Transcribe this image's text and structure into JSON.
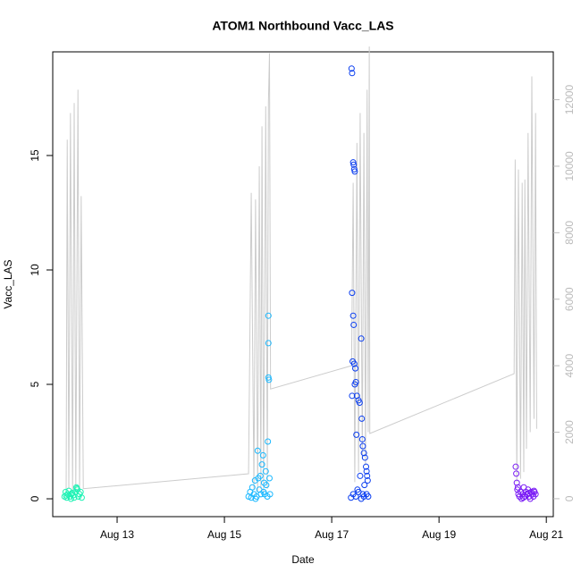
{
  "chart_data": {
    "type": "scatter",
    "title": "ATOM1 Northbound Vacc_LAS",
    "x_label": "Date",
    "y_label": "Vacc_LAS",
    "xlim": [
      11.8,
      21.13
    ],
    "xticks": [
      {
        "value": 13,
        "label": "Aug 13"
      },
      {
        "value": 15,
        "label": "Aug 15"
      },
      {
        "value": 17,
        "label": "Aug 17"
      },
      {
        "value": 19,
        "label": "Aug 19"
      },
      {
        "value": 21,
        "label": "Aug 21"
      }
    ],
    "ylim": [
      -0.78,
      19.53
    ],
    "yticks": [
      0,
      5,
      10,
      15
    ],
    "y2lim": [
      -540,
      13440
    ],
    "y2ticks": [
      0,
      2000,
      4000,
      6000,
      8000,
      10000,
      12000
    ],
    "series": [
      {
        "style": "line",
        "axis": "y2",
        "color": "#cccccc",
        "x": [
          12.05,
          12.07,
          12.1,
          12.13,
          12.17,
          12.2,
          12.23,
          12.27,
          12.3,
          12.33,
          12.37,
          15.45,
          15.5,
          15.55,
          15.58,
          15.62,
          15.65,
          15.68,
          15.7,
          15.73,
          15.77,
          15.8,
          15.82,
          15.84,
          15.86,
          17.37,
          17.4,
          17.43,
          17.47,
          17.5,
          17.53,
          17.57,
          17.6,
          17.63,
          17.66,
          17.68,
          17.7,
          17.71,
          20.4,
          20.42,
          20.45,
          20.48,
          20.52,
          20.55,
          20.58,
          20.6,
          20.63,
          20.66,
          20.7,
          20.73,
          20.77,
          20.8,
          20.82
        ],
        "values": [
          200,
          10800,
          300,
          11600,
          200,
          11900,
          300,
          12300,
          200,
          9100,
          300,
          750,
          9200,
          300,
          9000,
          200,
          10000,
          300,
          11200,
          200,
          11800,
          300,
          11900,
          13400,
          3300,
          4000,
          9500,
          500,
          10700,
          800,
          11600,
          1200,
          11000,
          1000,
          12300,
          2000,
          13600,
          1960,
          3760,
          10200,
          500,
          9900,
          600,
          9500,
          800,
          9600,
          1500,
          11000,
          2000,
          12700,
          2400,
          11600,
          2100
        ]
      },
      {
        "style": "points",
        "color": "#1ef2b4",
        "x": [
          12.02,
          12.04,
          12.06,
          12.08,
          12.1,
          12.12,
          12.14,
          12.16,
          12.18,
          12.2,
          12.22,
          12.24,
          12.26,
          12.28,
          12.3,
          12.32,
          12.34,
          12.05,
          12.15,
          12.25
        ],
        "values": [
          0.1,
          0.3,
          0.05,
          0.2,
          0.35,
          0.1,
          0.0,
          0.25,
          0.15,
          0.05,
          0.3,
          0.5,
          0.4,
          0.1,
          0.2,
          0.3,
          0.05,
          0.15,
          0.2,
          0.45
        ]
      },
      {
        "style": "points",
        "color": "#1ab8ff",
        "x": [
          15.45,
          15.48,
          15.5,
          15.52,
          15.55,
          15.57,
          15.6,
          15.62,
          15.63,
          15.65,
          15.67,
          15.7,
          15.72,
          15.73,
          15.75,
          15.77,
          15.78,
          15.8,
          15.82,
          15.82,
          15.82,
          15.83,
          15.81,
          15.84,
          15.85,
          15.58,
          15.68,
          15.74
        ],
        "values": [
          0.1,
          0.3,
          0.05,
          0.5,
          0.2,
          0.8,
          0.1,
          2.1,
          0.9,
          0.4,
          1.0,
          1.5,
          1.9,
          0.3,
          0.2,
          1.2,
          0.6,
          0.1,
          8.0,
          6.8,
          5.3,
          5.2,
          2.5,
          0.9,
          0.2,
          0.0,
          0.2,
          0.7
        ]
      },
      {
        "style": "points",
        "color": "#0b3ef0",
        "x": [
          17.37,
          17.38,
          17.4,
          17.41,
          17.42,
          17.43,
          17.38,
          17.39,
          17.4,
          17.41,
          17.42,
          17.44,
          17.45,
          17.47,
          17.5,
          17.52,
          17.38,
          17.43,
          17.55,
          17.56,
          17.57,
          17.58,
          17.6,
          17.62,
          17.64,
          17.65,
          17.66,
          17.67,
          17.4,
          17.45,
          17.5,
          17.55,
          17.6,
          17.65,
          17.36,
          17.48,
          17.58,
          17.68,
          17.46,
          17.53,
          17.61
        ],
        "values": [
          18.8,
          18.6,
          14.7,
          14.6,
          14.4,
          14.3,
          9.0,
          6.0,
          8.0,
          7.6,
          5.9,
          5.7,
          5.1,
          4.5,
          4.3,
          4.2,
          4.5,
          5.0,
          7.0,
          3.5,
          2.6,
          2.3,
          2.0,
          1.8,
          1.4,
          1.2,
          1.0,
          0.8,
          0.2,
          0.1,
          0.3,
          0.0,
          0.1,
          0.2,
          0.05,
          0.4,
          0.2,
          0.1,
          2.8,
          1.0,
          0.6
        ]
      },
      {
        "style": "points",
        "color": "#7a1cf5",
        "x": [
          20.43,
          20.44,
          20.45,
          20.46,
          20.48,
          20.5,
          20.52,
          20.54,
          20.56,
          20.58,
          20.6,
          20.62,
          20.64,
          20.66,
          20.68,
          20.7,
          20.72,
          20.74,
          20.76,
          20.78,
          20.8,
          20.47,
          20.57,
          20.67,
          20.77
        ],
        "values": [
          1.4,
          1.1,
          0.7,
          0.4,
          0.2,
          0.1,
          0.3,
          0.0,
          0.2,
          0.5,
          0.1,
          0.3,
          0.2,
          0.4,
          0.1,
          0.0,
          0.3,
          0.2,
          0.1,
          0.3,
          0.2,
          0.5,
          0.05,
          0.25,
          0.35
        ]
      }
    ]
  }
}
